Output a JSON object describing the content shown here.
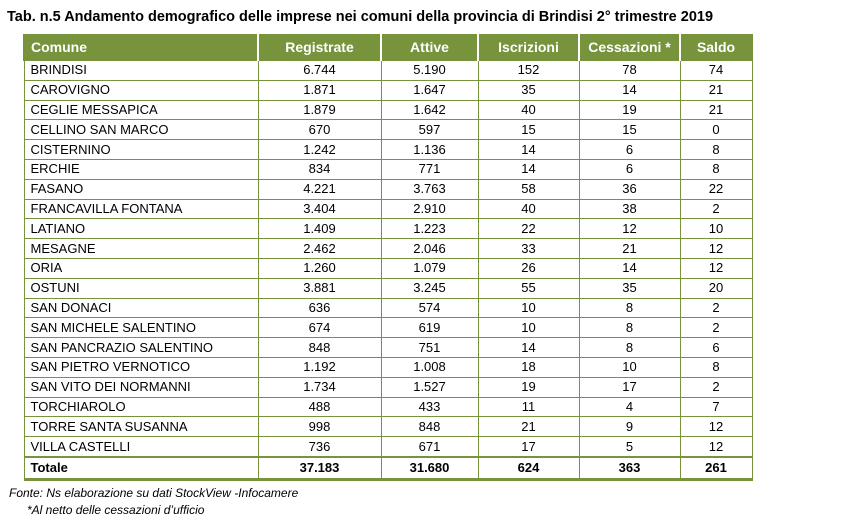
{
  "title": "Tab. n.5 Andamento demografico delle imprese nei comuni della provincia di Brindisi 2° trimestre 2019",
  "table": {
    "headers": [
      "Comune",
      "Registrate",
      "Attive",
      "Iscrizioni",
      "Cessazioni *",
      "Saldo"
    ],
    "rows": [
      [
        "BRINDISI",
        "6.744",
        "5.190",
        "152",
        "78",
        "74"
      ],
      [
        "CAROVIGNO",
        "1.871",
        "1.647",
        "35",
        "14",
        "21"
      ],
      [
        "CEGLIE MESSAPICA",
        "1.879",
        "1.642",
        "40",
        "19",
        "21"
      ],
      [
        "CELLINO SAN MARCO",
        "670",
        "597",
        "15",
        "15",
        "0"
      ],
      [
        "CISTERNINO",
        "1.242",
        "1.136",
        "14",
        "6",
        "8"
      ],
      [
        "ERCHIE",
        "834",
        "771",
        "14",
        "6",
        "8"
      ],
      [
        "FASANO",
        "4.221",
        "3.763",
        "58",
        "36",
        "22"
      ],
      [
        "FRANCAVILLA FONTANA",
        "3.404",
        "2.910",
        "40",
        "38",
        "2"
      ],
      [
        "LATIANO",
        "1.409",
        "1.223",
        "22",
        "12",
        "10"
      ],
      [
        "MESAGNE",
        "2.462",
        "2.046",
        "33",
        "21",
        "12"
      ],
      [
        "ORIA",
        "1.260",
        "1.079",
        "26",
        "14",
        "12"
      ],
      [
        "OSTUNI",
        "3.881",
        "3.245",
        "55",
        "35",
        "20"
      ],
      [
        "SAN DONACI",
        "636",
        "574",
        "10",
        "8",
        "2"
      ],
      [
        "SAN MICHELE SALENTINO",
        "674",
        "619",
        "10",
        "8",
        "2"
      ],
      [
        "SAN PANCRAZIO SALENTINO",
        "848",
        "751",
        "14",
        "8",
        "6"
      ],
      [
        "SAN PIETRO VERNOTICO",
        "1.192",
        "1.008",
        "18",
        "10",
        "8"
      ],
      [
        "SAN VITO DEI NORMANNI",
        "1.734",
        "1.527",
        "19",
        "17",
        "2"
      ],
      [
        "TORCHIAROLO",
        "488",
        "433",
        "11",
        "4",
        "7"
      ],
      [
        "TORRE SANTA SUSANNA",
        "998",
        "848",
        "21",
        "9",
        "12"
      ],
      [
        "VILLA CASTELLI",
        "736",
        "671",
        "17",
        "5",
        "12"
      ]
    ],
    "total": [
      "Totale",
      "37.183",
      "31.680",
      "624",
      "363",
      "261"
    ]
  },
  "source": "Fonte: Ns elaborazione su dati StockView -Infocamere",
  "note": "*Al netto delle cessazioni d’ufficio",
  "colors": {
    "header_bg": "#77933c",
    "header_text": "#ffffff",
    "border": "#77933c"
  }
}
